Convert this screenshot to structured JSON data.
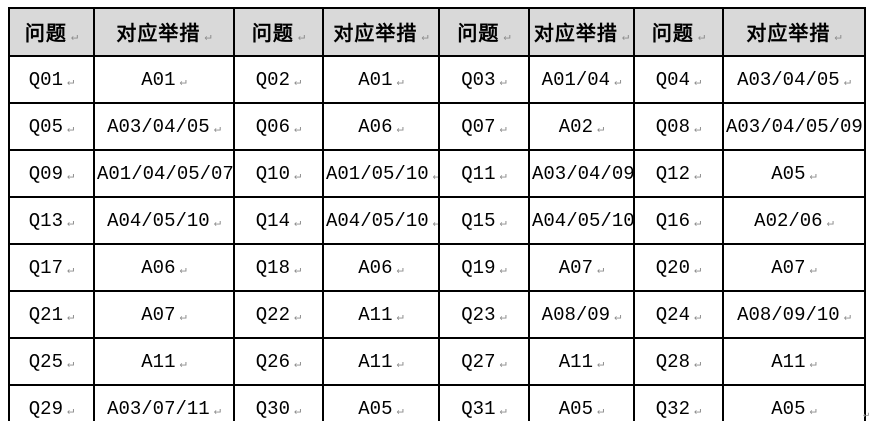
{
  "table": {
    "header_labels": [
      "问题",
      "对应举措",
      "问题",
      "对应举措",
      "问题",
      "对应举措",
      "问题",
      "对应举措"
    ],
    "rows": [
      [
        "Q01",
        "A01",
        "Q02",
        "A01",
        "Q03",
        "A01/04",
        "Q04",
        "A03/04/05"
      ],
      [
        "Q05",
        "A03/04/05",
        "Q06",
        "A06",
        "Q07",
        "A02",
        "Q08",
        "A03/04/05/09"
      ],
      [
        "Q09",
        "A01/04/05/07",
        "Q10",
        "A01/05/10",
        "Q11",
        "A03/04/09",
        "Q12",
        "A05"
      ],
      [
        "Q13",
        "A04/05/10",
        "Q14",
        "A04/05/10",
        "Q15",
        "A04/05/10",
        "Q16",
        "A02/06"
      ],
      [
        "Q17",
        "A06",
        "Q18",
        "A06",
        "Q19",
        "A07",
        "Q20",
        "A07"
      ],
      [
        "Q21",
        "A07",
        "Q22",
        "A11",
        "Q23",
        "A08/09",
        "Q24",
        "A08/09/10"
      ],
      [
        "Q25",
        "A11",
        "Q26",
        "A11",
        "Q27",
        "A11",
        "Q28",
        "A11"
      ],
      [
        "Q29",
        "A03/07/11",
        "Q30",
        "A05",
        "Q31",
        "A05",
        "Q32",
        "A05"
      ]
    ]
  },
  "marks": {
    "paragraph_mark": "↵"
  },
  "colors": {
    "header_bg": "#d9d9d9",
    "border": "#000000",
    "text": "#000000",
    "mark": "#8c8c8c"
  }
}
